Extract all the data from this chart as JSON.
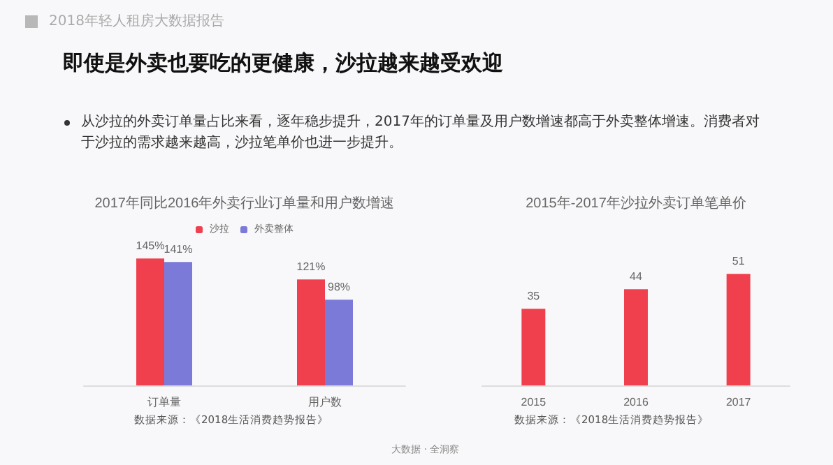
{
  "chart_data": [
    {
      "type": "bar",
      "title": "2017年同比2016年外卖行业订单量和用户数增速",
      "categories": [
        "订单量",
        "用户数"
      ],
      "series": [
        {
          "name": "沙拉",
          "color": "#f0404e",
          "values": [
            145,
            121
          ],
          "value_labels": [
            "145%",
            "121%"
          ]
        },
        {
          "name": "外卖整体",
          "color": "#7b7ad8",
          "values": [
            141,
            98
          ],
          "value_labels": [
            "141%",
            "98%"
          ]
        }
      ],
      "legend": "top",
      "annotations": [
        "2018年轻人租房大数据报告",
        "即使是外卖也要吃的更健康，沙拉越来越受欢迎",
        "从沙拉的外卖订单量占比来看，逐年稳步提升，2017年的订单量及用户数增速都高于外卖整体增速。消费者对于沙拉的需求越来越高，沙拉笔单价也进一步提升。",
        "数据来源：《2018生活消费趋势报告》"
      ]
    },
    {
      "type": "bar",
      "title": "2015年-2017年沙拉外卖订单笔单价",
      "categories": [
        "2015",
        "2016",
        "2017"
      ],
      "values": [
        35,
        44,
        51
      ],
      "color": "#f0404e",
      "data_labels": true,
      "legend": false,
      "annotations": [
        "数据来源：《2018生活消费趋势报告》",
        "大数据 · 全洞察"
      ]
    }
  ]
}
